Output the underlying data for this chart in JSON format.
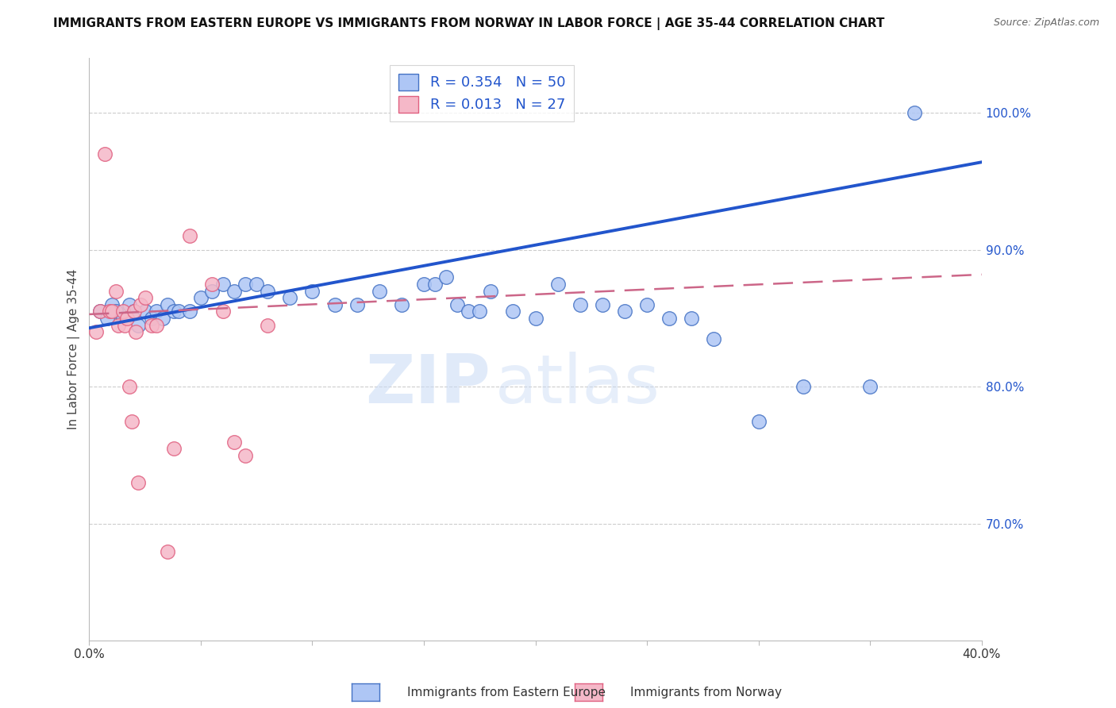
{
  "title": "IMMIGRANTS FROM EASTERN EUROPE VS IMMIGRANTS FROM NORWAY IN LABOR FORCE | AGE 35-44 CORRELATION CHART",
  "source": "Source: ZipAtlas.com",
  "ylabel": "In Labor Force | Age 35-44",
  "y_ticks_right": [
    0.7,
    0.8,
    0.9,
    1.0
  ],
  "y_tick_labels_right": [
    "70.0%",
    "80.0%",
    "90.0%",
    "100.0%"
  ],
  "xlim": [
    0.0,
    0.4
  ],
  "ylim": [
    0.615,
    1.04
  ],
  "blue_color": "#aec6f5",
  "pink_color": "#f5b8c8",
  "blue_edge_color": "#4472c4",
  "pink_edge_color": "#e06080",
  "blue_line_color": "#2255cc",
  "pink_line_color": "#cc6688",
  "grid_color": "#cccccc",
  "R_blue": 0.354,
  "N_blue": 50,
  "R_pink": 0.013,
  "N_pink": 27,
  "legend_label_blue": "Immigrants from Eastern Europe",
  "legend_label_pink": "Immigrants from Norway",
  "watermark_zip": "ZIP",
  "watermark_atlas": "atlas",
  "blue_scatter_x": [
    0.005,
    0.008,
    0.01,
    0.012,
    0.015,
    0.018,
    0.02,
    0.022,
    0.025,
    0.028,
    0.03,
    0.033,
    0.035,
    0.038,
    0.04,
    0.045,
    0.05,
    0.055,
    0.06,
    0.065,
    0.07,
    0.075,
    0.08,
    0.09,
    0.1,
    0.11,
    0.12,
    0.13,
    0.14,
    0.15,
    0.155,
    0.16,
    0.165,
    0.17,
    0.175,
    0.18,
    0.19,
    0.2,
    0.21,
    0.22,
    0.23,
    0.24,
    0.25,
    0.26,
    0.27,
    0.28,
    0.3,
    0.32,
    0.35,
    0.37
  ],
  "blue_scatter_y": [
    0.855,
    0.85,
    0.86,
    0.855,
    0.85,
    0.86,
    0.855,
    0.845,
    0.855,
    0.85,
    0.855,
    0.85,
    0.86,
    0.855,
    0.855,
    0.855,
    0.865,
    0.87,
    0.875,
    0.87,
    0.875,
    0.875,
    0.87,
    0.865,
    0.87,
    0.86,
    0.86,
    0.87,
    0.86,
    0.875,
    0.875,
    0.88,
    0.86,
    0.855,
    0.855,
    0.87,
    0.855,
    0.85,
    0.875,
    0.86,
    0.86,
    0.855,
    0.86,
    0.85,
    0.85,
    0.835,
    0.775,
    0.8,
    0.8,
    1.0
  ],
  "pink_scatter_x": [
    0.003,
    0.005,
    0.007,
    0.009,
    0.01,
    0.012,
    0.013,
    0.015,
    0.016,
    0.017,
    0.018,
    0.019,
    0.02,
    0.021,
    0.022,
    0.023,
    0.025,
    0.028,
    0.03,
    0.035,
    0.038,
    0.045,
    0.055,
    0.06,
    0.065,
    0.07,
    0.08
  ],
  "pink_scatter_y": [
    0.84,
    0.855,
    0.97,
    0.855,
    0.855,
    0.87,
    0.845,
    0.855,
    0.845,
    0.85,
    0.8,
    0.775,
    0.855,
    0.84,
    0.73,
    0.86,
    0.865,
    0.845,
    0.845,
    0.68,
    0.755,
    0.91,
    0.875,
    0.855,
    0.76,
    0.75,
    0.845
  ],
  "blue_line_x": [
    0.0,
    0.4
  ],
  "blue_line_y": [
    0.843,
    0.964
  ],
  "pink_line_x": [
    0.0,
    0.4
  ],
  "pink_line_y": [
    0.853,
    0.882
  ]
}
